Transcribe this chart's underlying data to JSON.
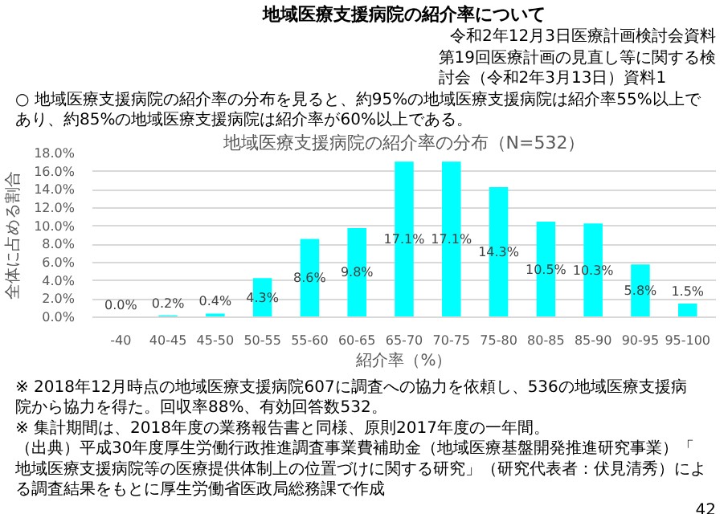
{
  "chart_data": {
    "type": "bar",
    "title": "地域医療支援病院の紹介率の分布（N=532）",
    "categories": [
      "-40",
      "40-45",
      "45-50",
      "50-55",
      "55-60",
      "60-65",
      "65-70",
      "70-75",
      "75-80",
      "80-85",
      "85-90",
      "90-95",
      "95-100"
    ],
    "values": [
      0.0,
      0.2,
      0.4,
      4.3,
      8.6,
      9.8,
      17.1,
      17.1,
      14.3,
      10.5,
      10.3,
      5.8,
      1.5
    ],
    "value_labels": [
      "0.0%",
      "0.2%",
      "0.4%",
      "4.3%",
      "8.6%",
      "9.8%",
      "17.1%",
      "17.1%",
      "14.3%",
      "10.5%",
      "10.3%",
      "5.8%",
      "1.5%"
    ],
    "color": "#00ffff",
    "xlabel": "紹介率（%）",
    "ylabel": "全体に占める割合",
    "grid": "y",
    "ylim": [
      0,
      18
    ],
    "yticks": [
      {
        "value": 0,
        "label": "0.0%"
      },
      {
        "value": 2,
        "label": "2.0%"
      },
      {
        "value": 4,
        "label": "4.0%"
      },
      {
        "value": 6,
        "label": "6.0%"
      },
      {
        "value": 8,
        "label": "8.0%"
      },
      {
        "value": 10,
        "label": "10.0%"
      },
      {
        "value": 12,
        "label": "12.0%"
      },
      {
        "value": 14,
        "label": "14.0%"
      },
      {
        "value": 16,
        "label": "16.0%"
      },
      {
        "value": 18,
        "label": "18.0%"
      }
    ],
    "annotations": [
      "地域医療支援病院の紹介率について",
      "令和2年12月3日医療計画検討会資料",
      "第19回医療計画の見直し等に関する検討会（令和2年3月13日）資料1",
      "○ 地域医療支援病院の紹介率の分布を見ると、約95%の地域医療支援病院は紹介率55%以上であり、約85%の地域医療支援病院は紹介率が60%以上である。",
      "※ 2018年12月時点の地域医療支援病院607に調査への協力を依頼し、536の地域医療支援病院から協力を得た。回収率88%、有効回答数532。",
      "※ 集計期間は、2018年度の業務報告書と同様、原則2017年度の一年間。",
      "（出典）平成30年度厚生労働行政推進調査事業費補助金（地域医療基盤開発推進研究事業）「地域医療支援病院等の医療提供体制上の位置づけに関する研究」（研究代表者：伏見清秀）による調査結果をもとに厚生労働省医政局総務課で作成",
      "42"
    ]
  }
}
